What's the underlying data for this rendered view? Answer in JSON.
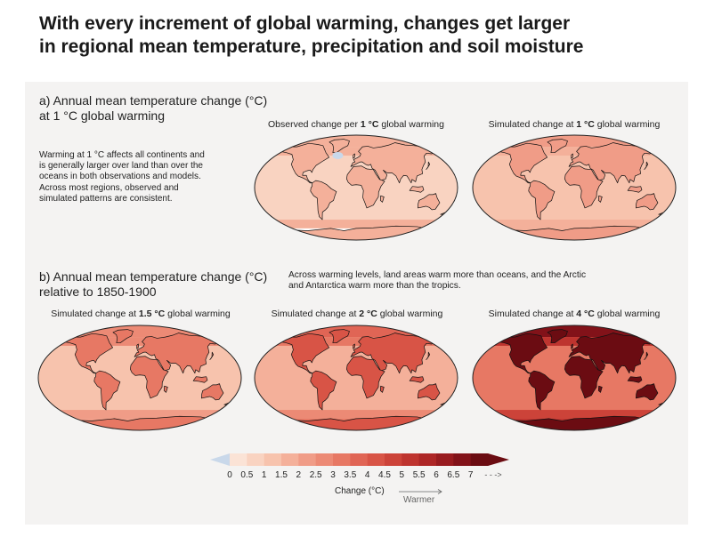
{
  "title": {
    "line1": "With every increment of global warming, changes get larger",
    "line2": "in regional mean temperature, precipitation and soil moisture"
  },
  "section_a": {
    "title_line1": "a) Annual mean temperature change (°C)",
    "title_line2": "at 1 °C global warming",
    "description": [
      "Warming at 1 °C affects all continents and",
      "is generally larger over land than over the",
      "oceans in both observations and models.",
      "Across most regions, observed and",
      "simulated patterns are consistent."
    ],
    "maps": [
      {
        "title_pre": "Observed change per ",
        "title_bold": "1 °C",
        "title_post": " global warming",
        "intensity": 0.18,
        "observed": true
      },
      {
        "title_pre": "Simulated change at ",
        "title_bold": "1 °C",
        "title_post": " global warming",
        "intensity": 0.2,
        "observed": false
      }
    ]
  },
  "section_b": {
    "title_line1": "b) Annual mean temperature change (°C)",
    "title_line2": "relative to 1850-1900",
    "description": [
      "Across warming levels, land areas warm more than oceans, and the Arctic",
      "and Antarctica warm more than the tropics."
    ],
    "maps": [
      {
        "title_pre": "Simulated change at ",
        "title_bold": "1.5 °C",
        "title_post": " global warming",
        "intensity": 0.32,
        "observed": false
      },
      {
        "title_pre": "Simulated change at ",
        "title_bold": "2 °C",
        "title_post": " global warming",
        "intensity": 0.45,
        "observed": false
      },
      {
        "title_pre": "Simulated change at ",
        "title_bold": "4 °C",
        "title_post": " global warming",
        "intensity": 0.82,
        "observed": false
      }
    ]
  },
  "colorbar": {
    "ticks": [
      "0",
      "0.5",
      "1",
      "1.5",
      "2",
      "2.5",
      "3",
      "3.5",
      "4",
      "4.5",
      "5",
      "5.5",
      "6",
      "6.5",
      "7"
    ],
    "overflow": "- - ->",
    "label": "Change (°C)",
    "direction": "Warmer",
    "colors": [
      "#fbe3d6",
      "#f9d3c1",
      "#f7c3ad",
      "#f4b09a",
      "#f09c87",
      "#ec8a75",
      "#e77864",
      "#e06555",
      "#d85446",
      "#cc4339",
      "#be342f",
      "#ad2626",
      "#981b1f",
      "#821219",
      "#6b0c12"
    ],
    "negative_color": "#c9d8ea"
  }
}
